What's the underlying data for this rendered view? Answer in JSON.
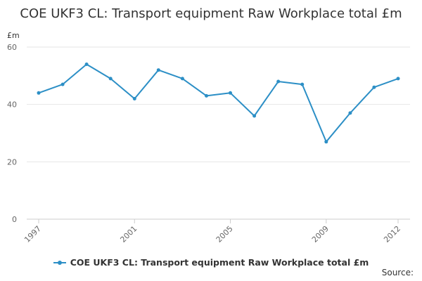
{
  "chart_data": {
    "type": "line",
    "title": "COE UKF3 CL: Transport equipment Raw Workplace total £m",
    "xlabel": "",
    "ylabel": "£m",
    "ylim": [
      0,
      60
    ],
    "yticks": [
      "0",
      "20",
      "40",
      "60"
    ],
    "xlim": [
      1997,
      2012
    ],
    "xticks": [
      "1997",
      "2001",
      "2005",
      "2009",
      "2012"
    ],
    "grid": true,
    "legend_position": "bottom",
    "series": [
      {
        "name": "COE UKF3 CL: Transport equipment Raw Workplace total £m",
        "color": "#2c8fc6",
        "x": [
          1997,
          1998,
          1999,
          2000,
          2001,
          2002,
          2003,
          2004,
          2005,
          2006,
          2007,
          2008,
          2009,
          2010,
          2011,
          2012
        ],
        "values": [
          44,
          47,
          54,
          49,
          42,
          52,
          49,
          43,
          44,
          36,
          48,
          47,
          27,
          37,
          46,
          49
        ]
      }
    ],
    "source_label": "Source:"
  }
}
